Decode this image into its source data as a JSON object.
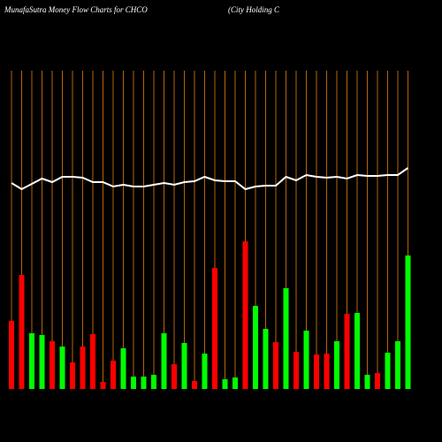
{
  "chart_data": {
    "type": "bar",
    "title": "MunafaSutra  Money Flow  Charts for CHCO",
    "subtitle": "(City Holding C",
    "ylim": [
      0,
      360
    ],
    "grid_color": "#b8640a",
    "series": [
      {
        "type": "bar",
        "values": [
          77,
          129,
          63,
          61,
          54,
          48,
          30,
          48,
          62,
          8,
          32,
          46,
          14,
          14,
          16,
          63,
          28,
          52,
          9,
          40,
          137,
          11,
          13,
          167,
          94,
          68,
          53,
          114,
          42,
          66,
          39,
          40,
          54,
          85,
          86,
          16,
          18,
          41,
          54,
          151
        ],
        "colors": [
          "#ff0000",
          "#ff0000",
          "#00ff00",
          "#00ff00",
          "#ff0000",
          "#00ff00",
          "#ff0000",
          "#ff0000",
          "#ff0000",
          "#ff0000",
          "#ff0000",
          "#00ff00",
          "#00ff00",
          "#00ff00",
          "#00ff00",
          "#00ff00",
          "#ff0000",
          "#00ff00",
          "#ff0000",
          "#00ff00",
          "#ff0000",
          "#00ff00",
          "#00ff00",
          "#ff0000",
          "#00ff00",
          "#00ff00",
          "#ff0000",
          "#00ff00",
          "#ff0000",
          "#00ff00",
          "#ff0000",
          "#ff0000",
          "#00ff00",
          "#ff0000",
          "#00ff00",
          "#00ff00",
          "#ff0000",
          "#00ff00",
          "#00ff00",
          "#00ff00"
        ]
      },
      {
        "type": "line",
        "color": "#ffffff",
        "values": [
          233,
          226,
          232,
          238,
          234,
          240,
          240,
          239,
          234,
          234,
          229,
          231,
          229,
          229,
          231,
          233,
          231,
          234,
          235,
          240,
          236,
          235,
          235,
          226,
          229,
          230,
          230,
          240,
          236,
          242,
          240,
          239,
          240,
          238,
          242,
          241,
          241,
          242,
          242,
          250
        ]
      }
    ]
  }
}
